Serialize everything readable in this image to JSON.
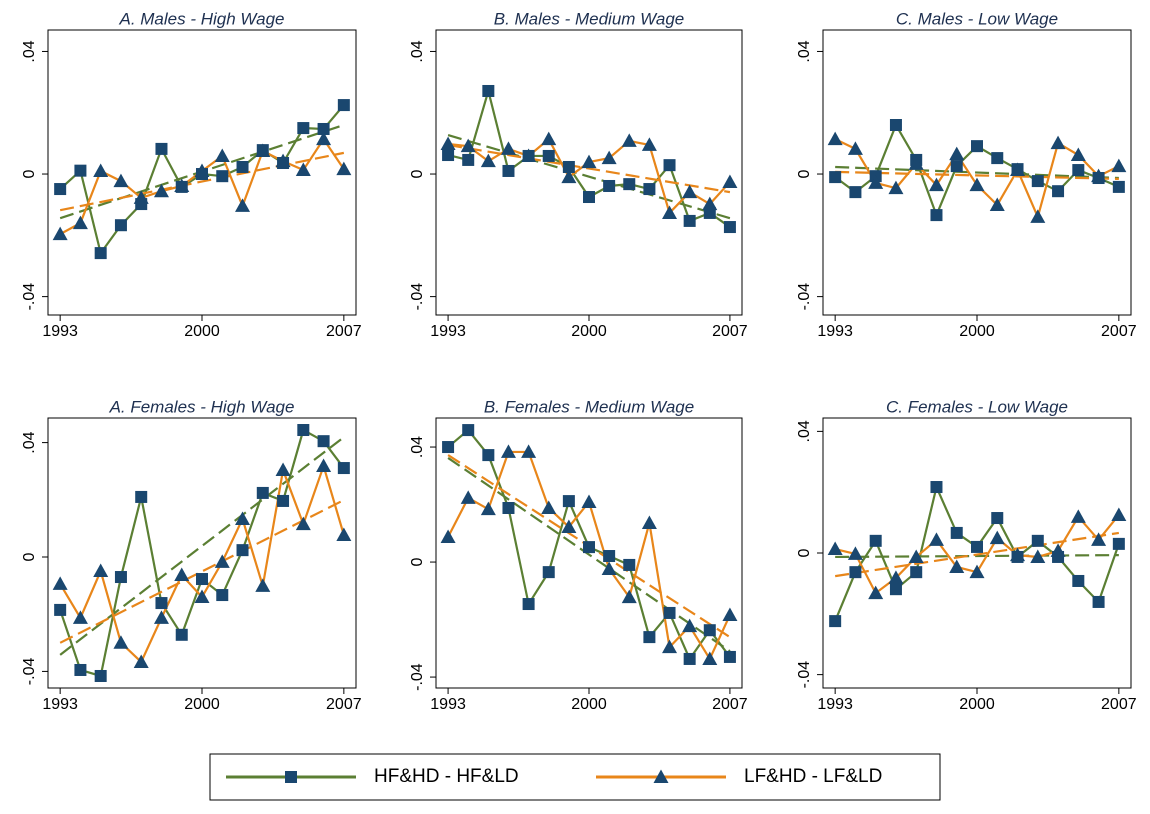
{
  "legend": [
    {
      "name": "HF&HD - HF&LD",
      "color": "#5b7f33",
      "marker_color": "#1a476f",
      "marker": "square"
    },
    {
      "name": "LF&HD - LF&LD",
      "color": "#e8861a",
      "marker_color": "#1a476f",
      "marker": "triangle"
    }
  ],
  "chart_data": [
    {
      "type": "line",
      "title": "A. Males - High Wage",
      "x": [
        1993,
        1994,
        1995,
        1996,
        1997,
        1998,
        1999,
        2000,
        2001,
        2002,
        2003,
        2004,
        2005,
        2006,
        2007
      ],
      "xlim": [
        1992.4,
        2007.6
      ],
      "xticks": [
        1993,
        2000,
        2007
      ],
      "ylim": [
        -0.046,
        0.047
      ],
      "yticks": [
        {
          "value": -0.04,
          "label": "-.04"
        },
        0,
        {
          "value": 0.04,
          "label": ".04"
        }
      ],
      "series": [
        {
          "values": [
            -0.0049,
            0.0011,
            -0.0258,
            -0.0167,
            -0.0098,
            0.0082,
            -0.0042,
            0,
            -0.0007,
            0.0023,
            0.0078,
            0.0036,
            0.015,
            0.0147,
            0.0225
          ],
          "trend": [
            -0.0144,
            0.016
          ]
        },
        {
          "values": [
            -0.0196,
            -0.016,
            0.001,
            -0.0023,
            -0.0078,
            -0.0056,
            -0.0039,
            0.001,
            0.0059,
            -0.0104,
            0.0075,
            0.0042,
            0.0013,
            0.0114,
            0.0016
          ],
          "trend": [
            -0.0118,
            0.0069
          ]
        }
      ]
    },
    {
      "type": "line",
      "title": "B. Males - Medium Wage",
      "x": [
        1993,
        1994,
        1995,
        1996,
        1997,
        1998,
        1999,
        2000,
        2001,
        2002,
        2003,
        2004,
        2005,
        2006,
        2007
      ],
      "xlim": [
        1992.4,
        2007.6
      ],
      "xticks": [
        1993,
        2000,
        2007
      ],
      "ylim": [
        -0.046,
        0.047
      ],
      "yticks": [
        {
          "value": -0.04,
          "label": "-.04"
        },
        0,
        {
          "value": 0.04,
          "label": ".04"
        }
      ],
      "series": [
        {
          "values": [
            0.0062,
            0.0046,
            0.0271,
            0.001,
            0.0059,
            0.0059,
            0.0023,
            -0.0075,
            -0.0039,
            -0.0033,
            -0.0049,
            0.0029,
            -0.0153,
            -0.0127,
            -0.0173
          ],
          "trend": [
            0.0127,
            -0.0144
          ]
        },
        {
          "values": [
            0.0098,
            0.0091,
            0.0042,
            0.0082,
            0.0059,
            0.0114,
            -0.001,
            0.0039,
            0.0052,
            0.0108,
            0.0095,
            -0.0127,
            -0.0059,
            -0.0098,
            -0.0026
          ],
          "trend": [
            0.0095,
            -0.0059
          ]
        }
      ]
    },
    {
      "type": "line",
      "title": "C. Males - Low Wage",
      "x": [
        1993,
        1994,
        1995,
        1996,
        1997,
        1998,
        1999,
        2000,
        2001,
        2002,
        2003,
        2004,
        2005,
        2006,
        2007
      ],
      "xlim": [
        1992.4,
        2007.6
      ],
      "xticks": [
        1993,
        2000,
        2007
      ],
      "ylim": [
        -0.046,
        0.047
      ],
      "yticks": [
        {
          "value": -0.04,
          "label": "-.04"
        },
        0,
        {
          "value": 0.04,
          "label": ".04"
        }
      ],
      "series": [
        {
          "values": [
            -0.001,
            -0.0059,
            -0.0007,
            0.016,
            0.0046,
            -0.0134,
            0.0026,
            0.0091,
            0.0052,
            0.0016,
            -0.0023,
            -0.0056,
            0.0013,
            -0.0013,
            -0.0042
          ],
          "trend": [
            0.0023,
            -0.0013
          ]
        },
        {
          "values": [
            0.0114,
            0.0082,
            -0.0029,
            -0.0046,
            0.0033,
            -0.0036,
            0.0065,
            -0.0036,
            -0.0101,
            0.0013,
            -0.014,
            0.0101,
            0.0062,
            -0.0007,
            0.0026
          ],
          "trend": [
            0.0007,
            -0.0016
          ]
        }
      ]
    },
    {
      "type": "line",
      "title": "A. Females - High Wage",
      "x": [
        1993,
        1994,
        1995,
        1996,
        1997,
        1998,
        1999,
        2000,
        2001,
        2002,
        2003,
        2004,
        2005,
        2006,
        2007
      ],
      "xlim": [
        1992.4,
        2007.6
      ],
      "xticks": [
        1993,
        2000,
        2007
      ],
      "ylim": [
        -0.0458,
        0.0486
      ],
      "yticks": [
        {
          "value": -0.04,
          "label": "-.04"
        },
        0,
        {
          "value": 0.04,
          "label": ".04"
        }
      ],
      "series": [
        {
          "values": [
            -0.0185,
            -0.0395,
            -0.0416,
            -0.007,
            0.021,
            -0.0161,
            -0.0272,
            -0.0077,
            -0.0133,
            0.0024,
            0.0224,
            0.0196,
            0.0444,
            0.0405,
            0.0311
          ],
          "trend": [
            -0.0342,
            0.0419
          ]
        },
        {
          "values": [
            -0.0094,
            -0.0213,
            -0.0049,
            -0.03,
            -0.0367,
            -0.0213,
            -0.0063,
            -0.014,
            -0.0017,
            0.0133,
            -0.0101,
            0.0304,
            0.0115,
            0.0318,
            0.0077
          ],
          "trend": [
            -0.03,
            0.0199
          ]
        }
      ]
    },
    {
      "type": "line",
      "title": "B. Females - Medium Wage",
      "x": [
        1993,
        1994,
        1995,
        1996,
        1997,
        1998,
        1999,
        2000,
        2001,
        2002,
        2003,
        2004,
        2005,
        2006,
        2007
      ],
      "xlim": [
        1992.4,
        2007.6
      ],
      "xticks": [
        1993,
        2000,
        2007
      ],
      "ylim": [
        -0.0438,
        0.0501
      ],
      "yticks": [
        {
          "value": -0.04,
          "label": "-.04"
        },
        0,
        {
          "value": 0.04,
          "label": ".04"
        }
      ],
      "series": [
        {
          "values": [
            0.04,
            0.0459,
            0.0372,
            0.0188,
            -0.0146,
            -0.0035,
            0.0212,
            0.0052,
            0.0021,
            -0.001,
            -0.0261,
            -0.0177,
            -0.0337,
            -0.0237,
            -0.033
          ],
          "trend": [
            0.0362,
            -0.031
          ]
        },
        {
          "values": [
            0.0087,
            0.0223,
            0.0184,
            0.0383,
            0.0383,
            0.0188,
            0.0122,
            0.0209,
            -0.0024,
            -0.0122,
            0.0136,
            -0.0296,
            -0.0223,
            -0.0337,
            -0.0184
          ],
          "trend": [
            0.0372,
            -0.0261
          ]
        }
      ]
    },
    {
      "type": "line",
      "title": "C. Females - Low Wage",
      "x": [
        1993,
        1994,
        1995,
        1996,
        1997,
        1998,
        1999,
        2000,
        2001,
        2002,
        2003,
        2004,
        2005,
        2006,
        2007
      ],
      "xlim": [
        1992.4,
        2007.6
      ],
      "xticks": [
        1993,
        2000,
        2007
      ],
      "ylim": [
        -0.0444,
        0.0444
      ],
      "yticks": [
        {
          "value": -0.04,
          "label": "-.04"
        },
        0,
        {
          "value": 0.04,
          "label": ".04"
        }
      ],
      "series": [
        {
          "values": [
            -0.0224,
            -0.0063,
            0.004,
            -0.0119,
            -0.0063,
            0.0217,
            0.0066,
            0.002,
            0.0115,
            -0.0013,
            0.004,
            -0.0013,
            -0.0092,
            -0.0161,
            0.003
          ],
          "trend": [
            -0.0013,
            -0.0007
          ]
        },
        {
          "values": [
            0.0013,
            -0.0003,
            -0.0132,
            -0.0082,
            -0.0013,
            0.0043,
            -0.0046,
            -0.0063,
            0.0049,
            -0.0007,
            -0.0013,
            0.0007,
            0.0119,
            0.0043,
            0.0125
          ],
          "trend": [
            -0.0076,
            0.0066
          ]
        }
      ]
    }
  ]
}
